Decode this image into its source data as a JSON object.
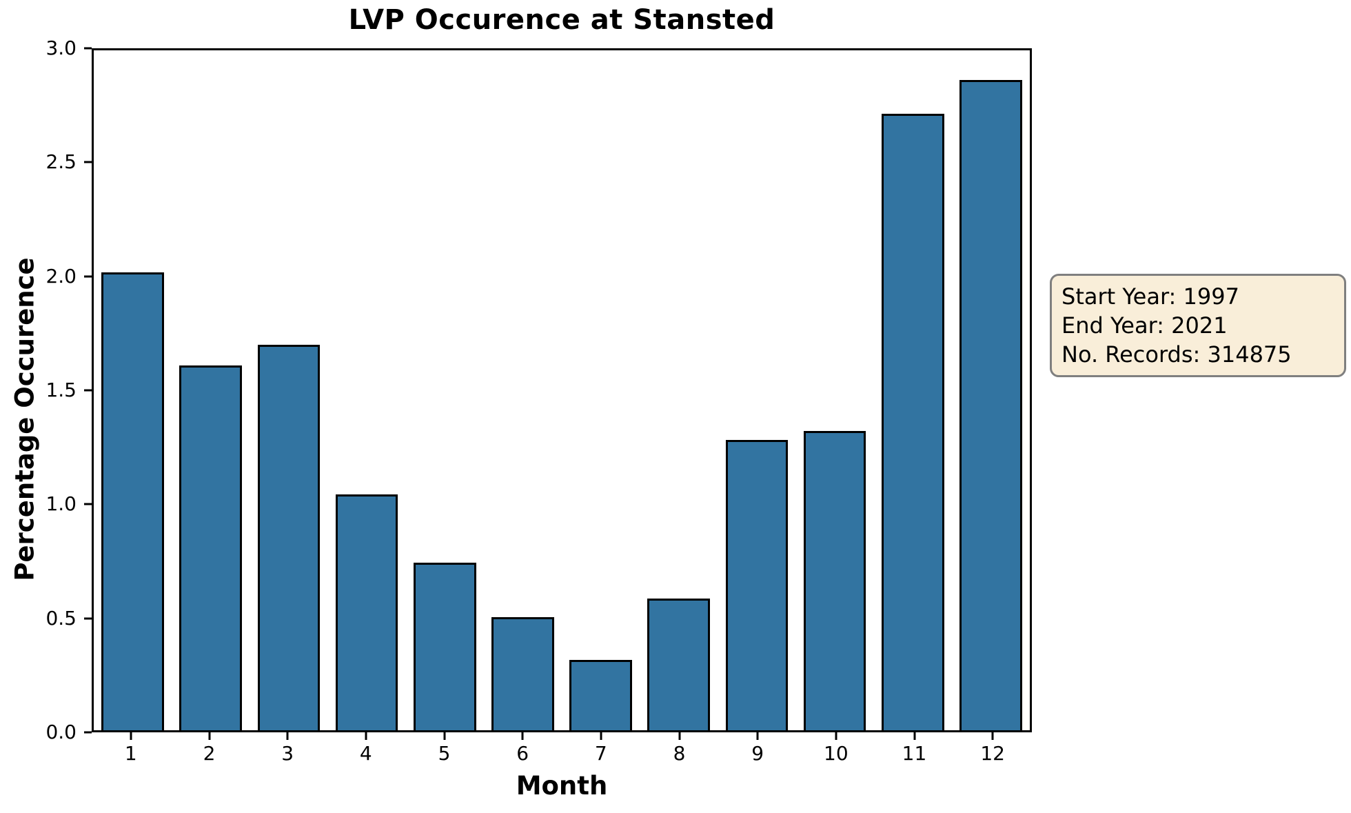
{
  "chart_data": {
    "type": "bar",
    "title": "LVP Occurence at Stansted",
    "xlabel": "Month",
    "ylabel": "Percentage Occurence",
    "categories": [
      "1",
      "2",
      "3",
      "4",
      "5",
      "6",
      "7",
      "8",
      "9",
      "10",
      "11",
      "12"
    ],
    "values": [
      2.02,
      1.61,
      1.7,
      1.04,
      0.74,
      0.5,
      0.31,
      0.58,
      1.28,
      1.32,
      2.72,
      2.87
    ],
    "ylim": [
      0.0,
      3.0
    ],
    "yticks": [
      0.0,
      0.5,
      1.0,
      1.5,
      2.0,
      2.5,
      3.0
    ],
    "grid": false,
    "legend": "none",
    "bar_color": "#3274a1",
    "bar_edge_color": "#000000",
    "annotation": {
      "lines": [
        "Start Year: 1997",
        "End Year: 2021",
        "No. Records: 314875"
      ],
      "bg_color": "#f9eed9",
      "border_color": "#7f7f7f"
    }
  }
}
